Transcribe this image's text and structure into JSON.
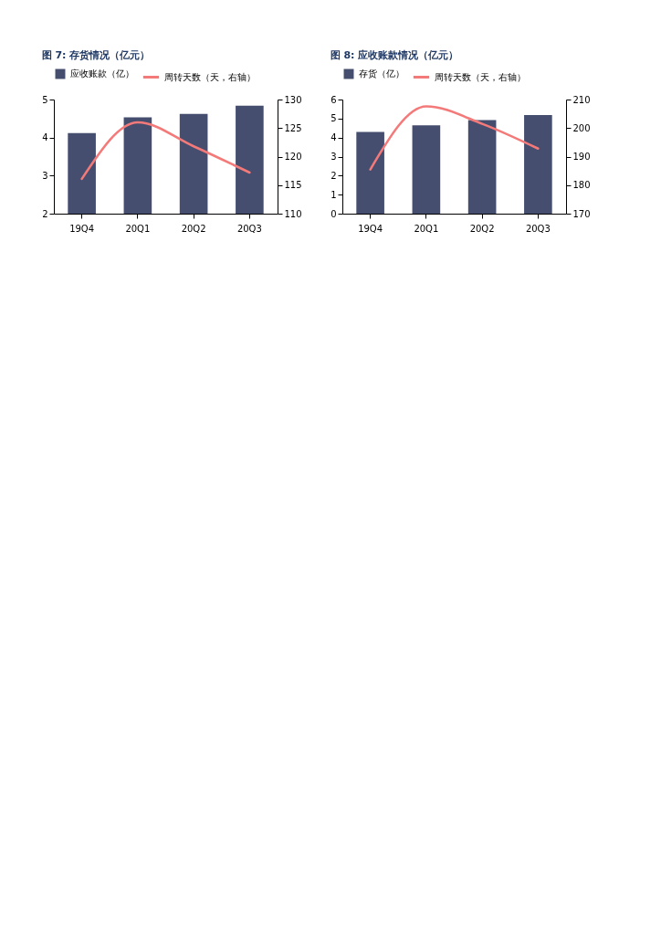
{
  "chart_data": [
    {
      "type": "bar",
      "title": "图 7: 存货情况（亿元）",
      "categories": [
        "19Q4",
        "20Q1",
        "20Q2",
        "20Q3"
      ],
      "series": [
        {
          "name": "应收账款（亿）",
          "color": "#454e6e",
          "values": [
            4.12,
            4.53,
            4.62,
            4.84
          ]
        },
        {
          "name": "周转天数（天，右轴）",
          "type": "line",
          "axis": "y2",
          "color": "#f47a7a",
          "values": [
            116.1,
            126.0,
            121.8,
            117.2
          ]
        }
      ],
      "ylim": [
        2,
        5
      ],
      "yticks": [
        2,
        3,
        4,
        5
      ],
      "y2lim": [
        110,
        130
      ],
      "y2ticks": [
        110,
        115,
        120,
        125,
        130
      ],
      "legend": "top"
    },
    {
      "type": "bar",
      "title": "图 8: 应收账款情况（亿元）",
      "categories": [
        "19Q4",
        "20Q1",
        "20Q2",
        "20Q3"
      ],
      "series": [
        {
          "name": "存货（亿）",
          "color": "#454e6e",
          "values": [
            4.3,
            4.65,
            4.92,
            5.18
          ]
        },
        {
          "name": "周转天数（天，右轴）",
          "type": "line",
          "axis": "y2",
          "color": "#f47a7a",
          "values": [
            185.5,
            207.6,
            201.5,
            192.8
          ]
        }
      ],
      "ylim": [
        0,
        6
      ],
      "yticks": [
        0,
        1,
        2,
        3,
        4,
        5,
        6
      ],
      "y2lim": [
        170,
        210
      ],
      "y2ticks": [
        170,
        180,
        190,
        200,
        210
      ],
      "legend": "top"
    }
  ]
}
